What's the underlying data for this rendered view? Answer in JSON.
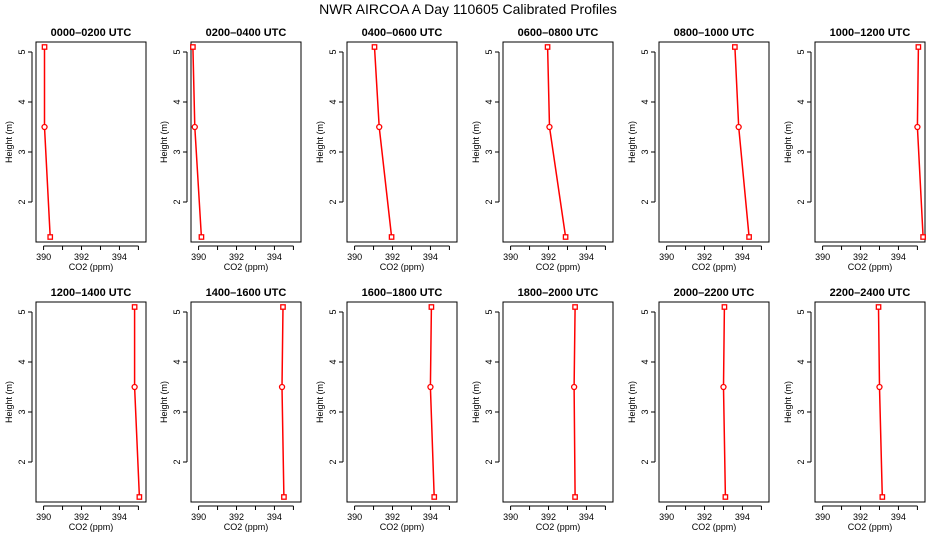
{
  "figure": {
    "title": "NWR AIRCOA A  Day 110605  Calibrated Profiles"
  },
  "chart_data": [
    {
      "type": "line",
      "title": "0000–0200 UTC",
      "xlabel": "CO2 (ppm)",
      "ylabel": "Height (m)",
      "x_ticks": [
        "390",
        "392",
        "394"
      ],
      "y_ticks": [
        "2",
        "3",
        "4",
        "5"
      ],
      "xlim": [
        389.6,
        395.4
      ],
      "ylim": [
        1.2,
        5.2
      ],
      "grid": false,
      "line_color": "#ff0000",
      "series": [
        {
          "x": [
            390.05,
            390.05,
            390.35
          ],
          "y": [
            5.1,
            3.5,
            1.3
          ]
        }
      ]
    },
    {
      "type": "line",
      "title": "0200–0400 UTC",
      "xlabel": "CO2 (ppm)",
      "ylabel": "Height (m)",
      "x_ticks": [
        "390",
        "392",
        "394"
      ],
      "y_ticks": [
        "2",
        "3",
        "4",
        "5"
      ],
      "xlim": [
        389.6,
        395.4
      ],
      "ylim": [
        1.2,
        5.2
      ],
      "grid": false,
      "line_color": "#ff0000",
      "series": [
        {
          "x": [
            389.7,
            389.8,
            390.15
          ],
          "y": [
            5.1,
            3.5,
            1.3
          ]
        }
      ]
    },
    {
      "type": "line",
      "title": "0400–0600 UTC",
      "xlabel": "CO2 (ppm)",
      "ylabel": "Height (m)",
      "x_ticks": [
        "390",
        "392",
        "394"
      ],
      "y_ticks": [
        "2",
        "3",
        "4",
        "5"
      ],
      "xlim": [
        389.6,
        395.4
      ],
      "ylim": [
        1.2,
        5.2
      ],
      "grid": false,
      "line_color": "#ff0000",
      "series": [
        {
          "x": [
            391.05,
            391.3,
            391.95
          ],
          "y": [
            5.1,
            3.5,
            1.3
          ]
        }
      ]
    },
    {
      "type": "line",
      "title": "0600–0800 UTC",
      "xlabel": "CO2 (ppm)",
      "ylabel": "Height (m)",
      "x_ticks": [
        "390",
        "392",
        "394"
      ],
      "y_ticks": [
        "2",
        "3",
        "4",
        "5"
      ],
      "xlim": [
        389.6,
        395.4
      ],
      "ylim": [
        1.2,
        5.2
      ],
      "grid": false,
      "line_color": "#ff0000",
      "series": [
        {
          "x": [
            391.95,
            392.05,
            392.9
          ],
          "y": [
            5.1,
            3.5,
            1.3
          ]
        }
      ]
    },
    {
      "type": "line",
      "title": "0800–1000 UTC",
      "xlabel": "CO2 (ppm)",
      "ylabel": "Height (m)",
      "x_ticks": [
        "390",
        "392",
        "394"
      ],
      "y_ticks": [
        "2",
        "3",
        "4",
        "5"
      ],
      "xlim": [
        389.6,
        395.4
      ],
      "ylim": [
        1.2,
        5.2
      ],
      "grid": false,
      "line_color": "#ff0000",
      "series": [
        {
          "x": [
            393.6,
            393.8,
            394.35
          ],
          "y": [
            5.1,
            3.5,
            1.3
          ]
        }
      ]
    },
    {
      "type": "line",
      "title": "1000–1200 UTC",
      "xlabel": "CO2 (ppm)",
      "ylabel": "Height (m)",
      "x_ticks": [
        "390",
        "392",
        "394"
      ],
      "y_ticks": [
        "2",
        "3",
        "4",
        "5"
      ],
      "xlim": [
        389.6,
        395.4
      ],
      "ylim": [
        1.2,
        5.2
      ],
      "grid": false,
      "line_color": "#ff0000",
      "series": [
        {
          "x": [
            395.05,
            395.0,
            395.3
          ],
          "y": [
            5.1,
            3.5,
            1.3
          ]
        }
      ]
    },
    {
      "type": "line",
      "title": "1200–1400 UTC",
      "xlabel": "CO2 (ppm)",
      "ylabel": "Height (m)",
      "x_ticks": [
        "390",
        "392",
        "394"
      ],
      "y_ticks": [
        "2",
        "3",
        "4",
        "5"
      ],
      "xlim": [
        389.6,
        395.4
      ],
      "ylim": [
        1.2,
        5.2
      ],
      "grid": false,
      "line_color": "#ff0000",
      "series": [
        {
          "x": [
            394.8,
            394.8,
            395.05
          ],
          "y": [
            5.1,
            3.5,
            1.3
          ]
        }
      ]
    },
    {
      "type": "line",
      "title": "1400–1600 UTC",
      "xlabel": "CO2 (ppm)",
      "ylabel": "Height (m)",
      "x_ticks": [
        "390",
        "392",
        "394"
      ],
      "y_ticks": [
        "2",
        "3",
        "4",
        "5"
      ],
      "xlim": [
        389.6,
        395.4
      ],
      "ylim": [
        1.2,
        5.2
      ],
      "grid": false,
      "line_color": "#ff0000",
      "series": [
        {
          "x": [
            394.45,
            394.4,
            394.5
          ],
          "y": [
            5.1,
            3.5,
            1.3
          ]
        }
      ]
    },
    {
      "type": "line",
      "title": "1600–1800 UTC",
      "xlabel": "CO2 (ppm)",
      "ylabel": "Height (m)",
      "x_ticks": [
        "390",
        "392",
        "394"
      ],
      "y_ticks": [
        "2",
        "3",
        "4",
        "5"
      ],
      "xlim": [
        389.6,
        395.4
      ],
      "ylim": [
        1.2,
        5.2
      ],
      "grid": false,
      "line_color": "#ff0000",
      "series": [
        {
          "x": [
            394.05,
            394.0,
            394.2
          ],
          "y": [
            5.1,
            3.5,
            1.3
          ]
        }
      ]
    },
    {
      "type": "line",
      "title": "1800–2000 UTC",
      "xlabel": "CO2 (ppm)",
      "ylabel": "Height (m)",
      "x_ticks": [
        "390",
        "392",
        "394"
      ],
      "y_ticks": [
        "2",
        "3",
        "4",
        "5"
      ],
      "xlim": [
        389.6,
        395.4
      ],
      "ylim": [
        1.2,
        5.2
      ],
      "grid": false,
      "line_color": "#ff0000",
      "series": [
        {
          "x": [
            393.4,
            393.35,
            393.4
          ],
          "y": [
            5.1,
            3.5,
            1.3
          ]
        }
      ]
    },
    {
      "type": "line",
      "title": "2000–2200 UTC",
      "xlabel": "CO2 (ppm)",
      "ylabel": "Height (m)",
      "x_ticks": [
        "390",
        "392",
        "394"
      ],
      "y_ticks": [
        "2",
        "3",
        "4",
        "5"
      ],
      "xlim": [
        389.6,
        395.4
      ],
      "ylim": [
        1.2,
        5.2
      ],
      "grid": false,
      "line_color": "#ff0000",
      "series": [
        {
          "x": [
            393.05,
            393.0,
            393.1
          ],
          "y": [
            5.1,
            3.5,
            1.3
          ]
        }
      ]
    },
    {
      "type": "line",
      "title": "2200–2400 UTC",
      "xlabel": "CO2 (ppm)",
      "ylabel": "Height (m)",
      "x_ticks": [
        "390",
        "392",
        "394"
      ],
      "y_ticks": [
        "2",
        "3",
        "4",
        "5"
      ],
      "xlim": [
        389.6,
        395.4
      ],
      "ylim": [
        1.2,
        5.2
      ],
      "grid": false,
      "line_color": "#ff0000",
      "series": [
        {
          "x": [
            392.95,
            393.0,
            393.15
          ],
          "y": [
            5.1,
            3.5,
            1.3
          ]
        }
      ]
    }
  ]
}
